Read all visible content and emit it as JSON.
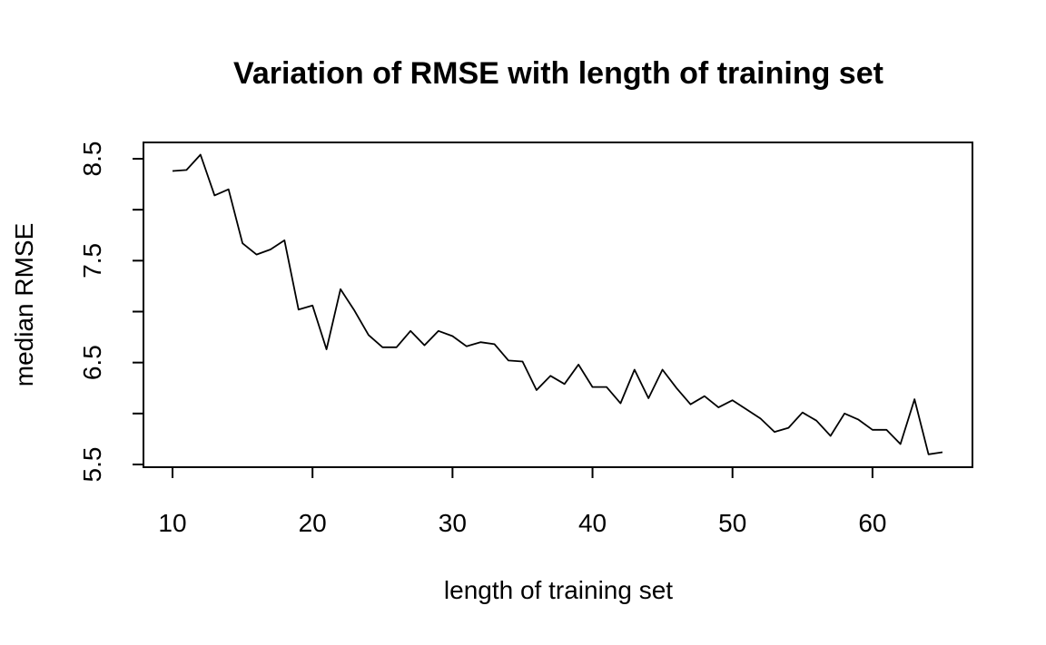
{
  "chart_data": {
    "type": "line",
    "title": "Variation of RMSE with length of training set",
    "xlabel": "length of training set",
    "ylabel": "median RMSE",
    "xlim": [
      10,
      65
    ],
    "ylim": [
      5.5,
      8.5
    ],
    "x_ticks": [
      10,
      20,
      30,
      40,
      50,
      60
    ],
    "x_tick_labels": [
      "10",
      "20",
      "30",
      "40",
      "50",
      "60"
    ],
    "y_ticks": [
      5.5,
      6.0,
      6.5,
      7.0,
      7.5,
      8.0,
      8.5
    ],
    "y_tick_labels": [
      "5.5",
      "",
      "6.5",
      "",
      "7.5",
      "",
      "8.5"
    ],
    "grid": false,
    "color": "#000000",
    "series": [
      {
        "x": [
          10,
          11,
          12,
          13,
          14,
          15,
          16,
          17,
          18,
          19,
          20,
          21,
          22,
          23,
          24,
          25,
          26,
          27,
          28,
          29,
          30,
          31,
          32,
          33,
          34,
          35,
          36,
          37,
          38,
          39,
          40,
          41,
          42,
          43,
          44,
          45,
          46,
          47,
          48,
          49,
          50,
          51,
          52,
          53,
          54,
          55,
          56,
          57,
          58,
          59,
          60,
          61,
          62,
          63,
          64,
          65
        ],
        "y": [
          8.38,
          8.39,
          8.54,
          8.14,
          8.2,
          7.67,
          7.56,
          7.61,
          7.7,
          7.02,
          7.06,
          6.63,
          7.22,
          7.01,
          6.77,
          6.65,
          6.65,
          6.81,
          6.67,
          6.81,
          6.76,
          6.66,
          6.7,
          6.68,
          6.52,
          6.51,
          6.23,
          6.37,
          6.29,
          6.48,
          6.26,
          6.26,
          6.1,
          6.43,
          6.15,
          6.43,
          6.25,
          6.09,
          6.17,
          6.06,
          6.13,
          6.04,
          5.95,
          5.82,
          5.86,
          6.01,
          5.93,
          5.78,
          6.0,
          5.94,
          5.84,
          5.84,
          5.7,
          6.14,
          5.6,
          5.62
        ]
      }
    ]
  }
}
